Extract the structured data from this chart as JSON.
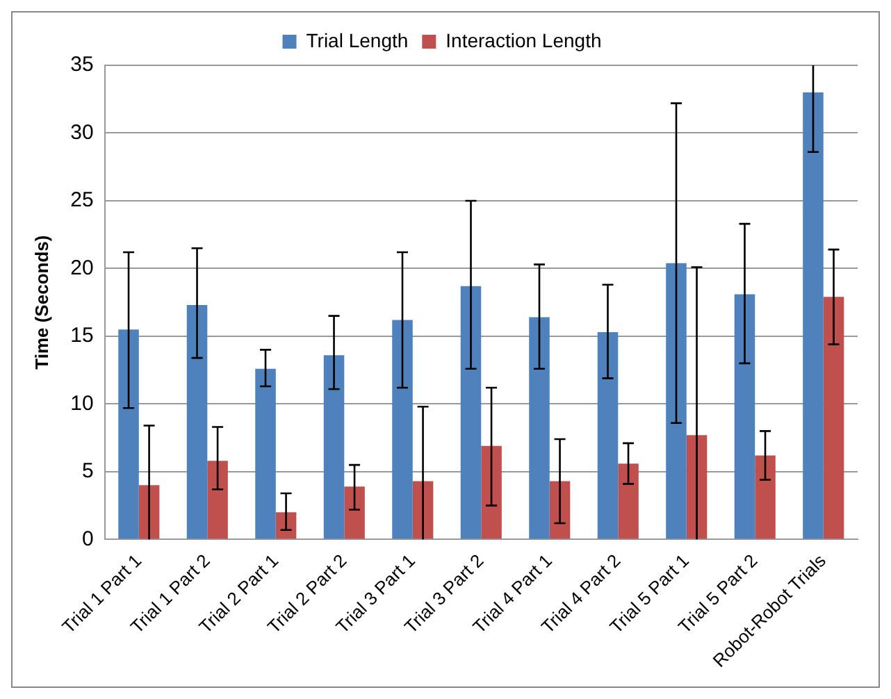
{
  "chart_data": {
    "type": "bar",
    "ylabel": "Time (Seconds)",
    "categories": [
      "Trial 1 Part 1",
      "Trial 1 Part 2",
      "Trial 2 Part 1",
      "Trial 2 Part 2",
      "Trial 3 Part 1",
      "Trial 3 Part 2",
      "Trial 4 Part 1",
      "Trial 4 Part 2",
      "Trial 5 Part 1",
      "Trial 5 Part 2",
      "Robot-Robot Trials"
    ],
    "series": [
      {
        "name": "Trial Length",
        "color": "#4f81bd",
        "values": [
          15.5,
          17.3,
          12.6,
          13.6,
          16.2,
          18.7,
          16.4,
          15.3,
          20.4,
          18.1,
          33.0
        ],
        "errors": [
          [
            9.7,
            21.2
          ],
          [
            13.4,
            21.5
          ],
          [
            11.3,
            14.0
          ],
          [
            11.1,
            16.5
          ],
          [
            11.2,
            21.2
          ],
          [
            12.6,
            25.0
          ],
          [
            12.6,
            20.3
          ],
          [
            11.9,
            18.8
          ],
          [
            8.6,
            32.2
          ],
          [
            13.0,
            23.3
          ],
          [
            28.6,
            35
          ]
        ]
      },
      {
        "name": "Interaction Length",
        "color": "#c0504d",
        "values": [
          4.0,
          5.8,
          2.0,
          3.9,
          4.3,
          6.9,
          4.3,
          5.6,
          7.7,
          6.2,
          17.9
        ],
        "errors": [
          [
            0,
            8.4
          ],
          [
            3.7,
            8.3
          ],
          [
            0.7,
            3.4
          ],
          [
            2.2,
            5.5
          ],
          [
            0,
            9.8
          ],
          [
            2.5,
            11.2
          ],
          [
            1.2,
            7.4
          ],
          [
            4.1,
            7.1
          ],
          [
            0,
            20.1
          ],
          [
            4.4,
            8.0
          ],
          [
            14.4,
            21.4
          ]
        ]
      }
    ],
    "ylim": [
      0,
      35
    ],
    "yticks": [
      0,
      5,
      10,
      15,
      20,
      25,
      30,
      35
    ],
    "grid": "y",
    "legend": "top"
  }
}
